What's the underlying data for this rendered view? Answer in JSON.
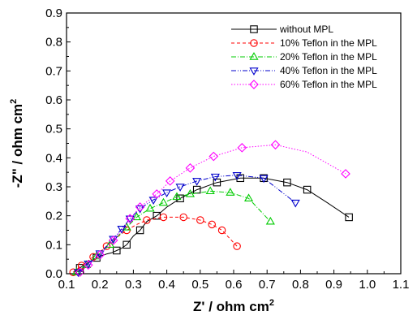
{
  "chart_data": {
    "type": "line",
    "xlabel": "Z' / ohm cm",
    "xlabel_sup": "2",
    "ylabel": "-Z\" / ohm cm",
    "ylabel_sup": "2",
    "xlim": [
      0.1,
      1.1
    ],
    "ylim": [
      0.0,
      0.9
    ],
    "xticks": [
      "0.1",
      "0.2",
      "0.3",
      "0.4",
      "0.5",
      "0.6",
      "0.7",
      "0.8",
      "0.9",
      "1.0",
      "1.1"
    ],
    "yticks": [
      "0.0",
      "0.1",
      "0.2",
      "0.3",
      "0.4",
      "0.5",
      "0.6",
      "0.7",
      "0.8",
      "0.9"
    ],
    "grid": false,
    "legend_position": "top-right",
    "series": [
      {
        "name": "without MPL",
        "color": "#000000",
        "marker": "square",
        "dash": "solid",
        "points": [
          [
            0.125,
            0.005
          ],
          [
            0.13,
            0.012
          ],
          [
            0.14,
            0.02
          ],
          [
            0.15,
            0.028
          ],
          [
            0.16,
            0.035
          ],
          [
            0.175,
            0.045
          ],
          [
            0.19,
            0.055
          ],
          [
            0.205,
            0.062
          ],
          [
            0.22,
            0.068
          ],
          [
            0.235,
            0.072
          ],
          [
            0.25,
            0.08
          ],
          [
            0.265,
            0.088
          ],
          [
            0.28,
            0.1
          ],
          [
            0.3,
            0.13
          ],
          [
            0.32,
            0.15
          ],
          [
            0.34,
            0.18
          ],
          [
            0.37,
            0.2
          ],
          [
            0.4,
            0.23
          ],
          [
            0.44,
            0.26
          ],
          [
            0.49,
            0.29
          ],
          [
            0.55,
            0.315
          ],
          [
            0.62,
            0.33
          ],
          [
            0.69,
            0.33
          ],
          [
            0.76,
            0.315
          ],
          [
            0.82,
            0.29
          ],
          [
            0.88,
            0.245
          ],
          [
            0.945,
            0.195
          ]
        ],
        "marked": [
          [
            0.28,
            0.1
          ],
          [
            0.32,
            0.15
          ],
          [
            0.37,
            0.2
          ],
          [
            0.44,
            0.26
          ],
          [
            0.49,
            0.29
          ],
          [
            0.55,
            0.315
          ],
          [
            0.62,
            0.33
          ],
          [
            0.69,
            0.33
          ],
          [
            0.76,
            0.315
          ],
          [
            0.82,
            0.29
          ],
          [
            0.945,
            0.195
          ],
          [
            0.25,
            0.08
          ],
          [
            0.19,
            0.055
          ],
          [
            0.14,
            0.02
          ]
        ]
      },
      {
        "name": "10% Teflon in the MPL",
        "color": "#ff0000",
        "marker": "circle",
        "dash": "dashed",
        "points": [
          [
            0.12,
            0.005
          ],
          [
            0.13,
            0.015
          ],
          [
            0.145,
            0.028
          ],
          [
            0.16,
            0.04
          ],
          [
            0.18,
            0.058
          ],
          [
            0.2,
            0.075
          ],
          [
            0.22,
            0.095
          ],
          [
            0.25,
            0.125
          ],
          [
            0.28,
            0.15
          ],
          [
            0.31,
            0.17
          ],
          [
            0.34,
            0.185
          ],
          [
            0.39,
            0.195
          ],
          [
            0.45,
            0.195
          ],
          [
            0.5,
            0.185
          ],
          [
            0.535,
            0.17
          ],
          [
            0.565,
            0.15
          ],
          [
            0.61,
            0.095
          ]
        ],
        "marked": [
          [
            0.12,
            0.005
          ],
          [
            0.145,
            0.028
          ],
          [
            0.18,
            0.058
          ],
          [
            0.22,
            0.095
          ],
          [
            0.28,
            0.15
          ],
          [
            0.34,
            0.185
          ],
          [
            0.39,
            0.195
          ],
          [
            0.45,
            0.195
          ],
          [
            0.5,
            0.185
          ],
          [
            0.535,
            0.17
          ],
          [
            0.565,
            0.15
          ],
          [
            0.61,
            0.095
          ]
        ]
      },
      {
        "name": "20% Teflon in the MPL",
        "color": "#00cc00",
        "marker": "triangle-up",
        "dash": "dashdot",
        "points": [
          [
            0.13,
            0.005
          ],
          [
            0.145,
            0.018
          ],
          [
            0.16,
            0.03
          ],
          [
            0.175,
            0.045
          ],
          [
            0.19,
            0.06
          ],
          [
            0.21,
            0.08
          ],
          [
            0.23,
            0.1
          ],
          [
            0.25,
            0.125
          ],
          [
            0.28,
            0.16
          ],
          [
            0.31,
            0.195
          ],
          [
            0.35,
            0.225
          ],
          [
            0.39,
            0.245
          ],
          [
            0.43,
            0.265
          ],
          [
            0.47,
            0.275
          ],
          [
            0.53,
            0.285
          ],
          [
            0.59,
            0.28
          ],
          [
            0.645,
            0.26
          ],
          [
            0.71,
            0.18
          ]
        ],
        "marked": [
          [
            0.13,
            0.005
          ],
          [
            0.16,
            0.03
          ],
          [
            0.19,
            0.06
          ],
          [
            0.23,
            0.1
          ],
          [
            0.28,
            0.16
          ],
          [
            0.31,
            0.195
          ],
          [
            0.35,
            0.225
          ],
          [
            0.39,
            0.245
          ],
          [
            0.43,
            0.265
          ],
          [
            0.47,
            0.275
          ],
          [
            0.53,
            0.285
          ],
          [
            0.59,
            0.28
          ],
          [
            0.645,
            0.26
          ],
          [
            0.71,
            0.18
          ]
        ]
      },
      {
        "name": "40% Teflon in the MPL",
        "color": "#0000cc",
        "marker": "triangle-down",
        "dash": "dashdotdot",
        "points": [
          [
            0.135,
            0.005
          ],
          [
            0.15,
            0.02
          ],
          [
            0.165,
            0.035
          ],
          [
            0.18,
            0.05
          ],
          [
            0.2,
            0.07
          ],
          [
            0.22,
            0.095
          ],
          [
            0.24,
            0.12
          ],
          [
            0.265,
            0.155
          ],
          [
            0.29,
            0.19
          ],
          [
            0.32,
            0.225
          ],
          [
            0.36,
            0.255
          ],
          [
            0.4,
            0.28
          ],
          [
            0.44,
            0.3
          ],
          [
            0.49,
            0.32
          ],
          [
            0.545,
            0.335
          ],
          [
            0.61,
            0.34
          ],
          [
            0.69,
            0.33
          ],
          [
            0.785,
            0.245
          ]
        ],
        "marked": [
          [
            0.135,
            0.005
          ],
          [
            0.165,
            0.035
          ],
          [
            0.2,
            0.07
          ],
          [
            0.24,
            0.12
          ],
          [
            0.265,
            0.155
          ],
          [
            0.29,
            0.19
          ],
          [
            0.32,
            0.225
          ],
          [
            0.36,
            0.255
          ],
          [
            0.4,
            0.28
          ],
          [
            0.44,
            0.3
          ],
          [
            0.49,
            0.32
          ],
          [
            0.545,
            0.335
          ],
          [
            0.61,
            0.34
          ],
          [
            0.69,
            0.33
          ],
          [
            0.785,
            0.245
          ]
        ]
      },
      {
        "name": "60% Teflon in the MPL",
        "color": "#ff00ff",
        "marker": "diamond",
        "dash": "dotted",
        "points": [
          [
            0.14,
            0.005
          ],
          [
            0.15,
            0.015
          ],
          [
            0.165,
            0.03
          ],
          [
            0.18,
            0.045
          ],
          [
            0.2,
            0.065
          ],
          [
            0.22,
            0.09
          ],
          [
            0.24,
            0.115
          ],
          [
            0.265,
            0.15
          ],
          [
            0.29,
            0.19
          ],
          [
            0.32,
            0.23
          ],
          [
            0.37,
            0.275
          ],
          [
            0.41,
            0.32
          ],
          [
            0.47,
            0.365
          ],
          [
            0.54,
            0.405
          ],
          [
            0.625,
            0.435
          ],
          [
            0.725,
            0.445
          ],
          [
            0.82,
            0.42
          ],
          [
            0.935,
            0.345
          ]
        ],
        "marked": [
          [
            0.14,
            0.005
          ],
          [
            0.165,
            0.03
          ],
          [
            0.2,
            0.065
          ],
          [
            0.24,
            0.115
          ],
          [
            0.29,
            0.19
          ],
          [
            0.32,
            0.23
          ],
          [
            0.37,
            0.275
          ],
          [
            0.41,
            0.32
          ],
          [
            0.47,
            0.365
          ],
          [
            0.54,
            0.405
          ],
          [
            0.625,
            0.435
          ],
          [
            0.725,
            0.445
          ],
          [
            0.935,
            0.345
          ]
        ]
      }
    ]
  }
}
